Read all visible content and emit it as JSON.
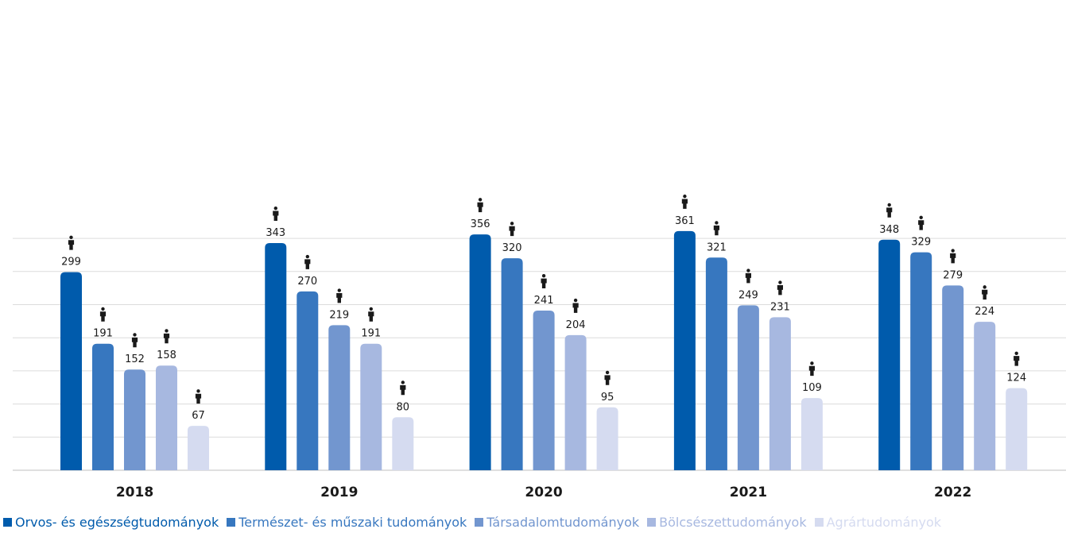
{
  "chart_data": {
    "type": "bar",
    "categories": [
      "2018",
      "2019",
      "2020",
      "2021",
      "2022"
    ],
    "series": [
      {
        "name": "Orvos- és egészségtudományok",
        "color": "#005BAC",
        "values": [
          299,
          343,
          356,
          361,
          348
        ]
      },
      {
        "name": "Természet- és műszaki tudományok",
        "color": "#3777BF",
        "values": [
          191,
          270,
          320,
          321,
          329
        ]
      },
      {
        "name": "Társadalomtudományok",
        "color": "#7296CF",
        "values": [
          152,
          219,
          241,
          249,
          279
        ]
      },
      {
        "name": "Bölcsészettudományok",
        "color": "#A7B8E0",
        "values": [
          158,
          191,
          204,
          231,
          224
        ]
      },
      {
        "name": "Agrártudományok",
        "color": "#D5DBF0",
        "values": [
          67,
          80,
          95,
          109,
          124
        ]
      }
    ],
    "ylim": [
      0,
      400
    ],
    "grid": true,
    "value_icon": "person-icon",
    "legend_position": "bottom"
  }
}
